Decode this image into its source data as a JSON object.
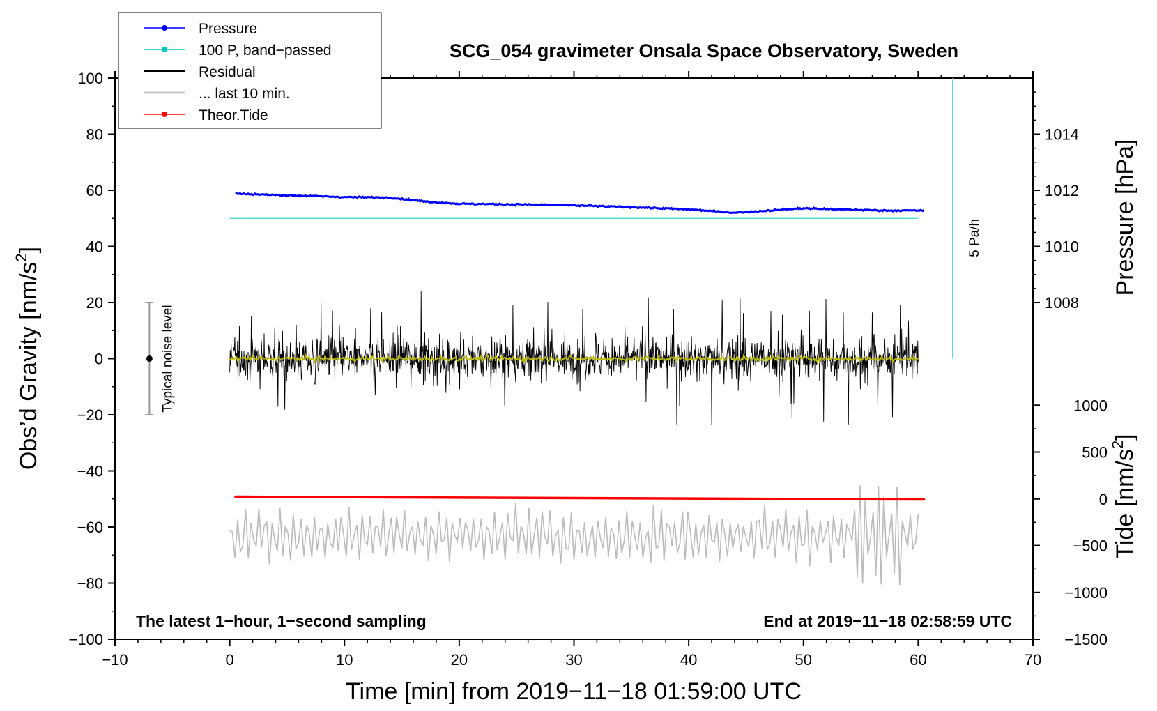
{
  "chart_data": {
    "type": "line",
    "title": "SCG_054 gravimeter Onsala Space Observatory, Sweden",
    "xlabel": "Time [min] from 2019−11−18 01:59:00 UTC",
    "xlim": [
      -10,
      70
    ],
    "x_ticks": [
      -10,
      0,
      10,
      20,
      30,
      40,
      50,
      60,
      70
    ],
    "x_tick_labels": [
      "−10",
      "0",
      "10",
      "20",
      "30",
      "40",
      "50",
      "60",
      "70"
    ],
    "left_axis": {
      "label_main": "Obs’d Gravity [nm/s",
      "label_sup": "2",
      "label_end": "]",
      "ylim": [
        -100,
        100
      ],
      "ticks": [
        -100,
        -80,
        -60,
        -40,
        -20,
        0,
        20,
        40,
        60,
        80,
        100
      ],
      "tick_labels": [
        "−100",
        "−80",
        "−60",
        "−40",
        "−20",
        "0",
        "20",
        "40",
        "60",
        "80",
        "100"
      ]
    },
    "right_pressure_axis": {
      "label": "Pressure [hPa]",
      "ticks": [
        1008,
        1010,
        1012,
        1014
      ],
      "tick_labels": [
        "1008",
        "1010",
        "1012",
        "1014"
      ],
      "gravity_equivalent": {
        "1008": 20,
        "1010": 40,
        "1012": 60,
        "1014": 80
      }
    },
    "right_tide_axis": {
      "label_main": "Tide [nm/s",
      "label_sup": "2",
      "label_end": "]",
      "ticks": [
        -1500,
        -1000,
        -500,
        0,
        500,
        1000
      ],
      "tick_labels": [
        "−1500",
        "−1000",
        "−500",
        "0",
        "500",
        "1000"
      ],
      "gravity_equivalent": {
        "-1500": -100,
        "-1000": -83.3,
        "-500": -66.6,
        "0": -50,
        "500": -33.3,
        "1000": -16.6
      }
    },
    "legend": [
      {
        "label": "Pressure",
        "color": "#0000ff",
        "marker": true
      },
      {
        "label": "100 P, band−passed",
        "color": "#00c8c8",
        "marker": true
      },
      {
        "label": "Residual",
        "color": "#000000",
        "marker": false
      },
      {
        "label": "... last 10 min.",
        "color": "#bbbbbb",
        "marker": false
      },
      {
        "label": "Theor.Tide",
        "color": "#ff0000",
        "marker": true
      }
    ],
    "series": [
      {
        "name": "Pressure",
        "color": "#0000ff",
        "x_range": [
          0.5,
          60.5
        ],
        "y_anchors_gravity": [
          [
            0.5,
            58.8
          ],
          [
            5,
            58.2
          ],
          [
            10,
            57.6
          ],
          [
            14,
            57.4
          ],
          [
            17,
            56.0
          ],
          [
            20,
            55.2
          ],
          [
            25,
            55.0
          ],
          [
            30,
            54.6
          ],
          [
            35,
            54.0
          ],
          [
            40,
            53.2
          ],
          [
            44,
            52.0
          ],
          [
            47,
            52.8
          ],
          [
            50,
            53.6
          ],
          [
            53,
            53.2
          ],
          [
            57,
            52.8
          ],
          [
            60.5,
            52.8
          ]
        ],
        "noise": 0.3
      },
      {
        "name": "100 P, band−passed",
        "color": "#55dddd",
        "x_range": [
          0,
          60
        ],
        "y_const_gravity": 50
      },
      {
        "name": "Residual",
        "color": "#000000",
        "x_range": [
          0,
          60
        ],
        "center": 0,
        "amplitude_typical": 12,
        "extremes": [
          26,
          -25
        ]
      },
      {
        "name": "Residual mean",
        "color": "#bbbb00",
        "x_range": [
          0,
          60
        ],
        "center": 0,
        "amplitude": 1
      },
      {
        "name": "... last 10 min.",
        "color": "#bbbbbb",
        "x_range": [
          0,
          60
        ],
        "center": -63,
        "amplitude_typical": 8,
        "extremes": [
          -38,
          -84
        ]
      },
      {
        "name": "Theor.Tide",
        "color": "#ff0000",
        "x_range": [
          0.5,
          60.5
        ],
        "y_start_gravity": -49.2,
        "y_end_gravity": -50.2
      }
    ],
    "pressure_rate_marker": {
      "label": "5 Pa/h",
      "x": 63,
      "y_from_gravity": 0,
      "y_to_gravity": 100
    },
    "noise_bar": {
      "label": "Typical noise level",
      "x": -7,
      "y_from": -20,
      "y_to": 20
    },
    "footer_left": "The latest 1−hour, 1−second sampling",
    "footer_right": "End at 2019−11−18 02:58:59 UTC"
  }
}
